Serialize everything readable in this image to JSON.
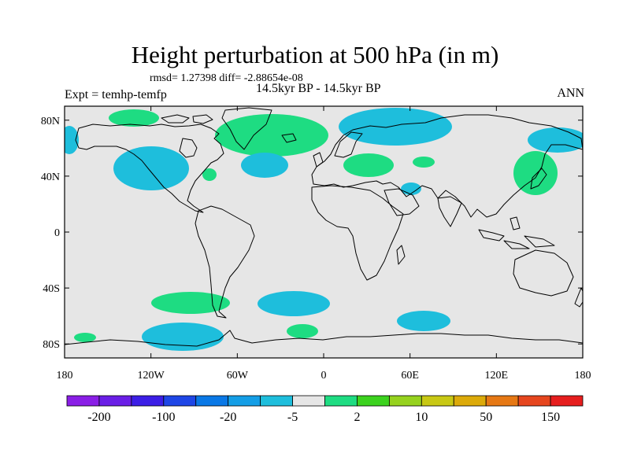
{
  "header": {
    "title": "Height perturbation at 500 hPa (in m)",
    "stats": "rmsd= 1.27398 diff= -2.88654e-08",
    "experiment": "Expt = temhp-temfp",
    "period": "14.5kyr BP - 14.5kyr BP",
    "season": "ANN"
  },
  "axes": {
    "x_ticks": [
      "180",
      "120W",
      "60W",
      "0",
      "60E",
      "120E",
      "180"
    ],
    "y_ticks": [
      "80N",
      "40N",
      "0",
      "40S",
      "80S"
    ]
  },
  "colorbar": {
    "colors": [
      "#8a1ee6",
      "#6a1ee6",
      "#3c1ee6",
      "#1e46e6",
      "#0a78e6",
      "#149ee6",
      "#1ebedc",
      "#e6e6e6",
      "#1edc82",
      "#3cd21e",
      "#96d21e",
      "#c8c814",
      "#dcaa0a",
      "#e67814",
      "#e6461e",
      "#e61e1e"
    ],
    "labels": [
      {
        "text": "-200",
        "index": 1
      },
      {
        "text": "-100",
        "index": 3
      },
      {
        "text": "-20",
        "index": 5
      },
      {
        "text": "-5",
        "index": 7
      },
      {
        "text": "2",
        "index": 9
      },
      {
        "text": "10",
        "index": 11
      },
      {
        "text": "50",
        "index": 13
      },
      {
        "text": "150",
        "index": 15
      }
    ]
  },
  "field": {
    "background": "#e6e6e6",
    "positive_color": "#1edc82",
    "negative_color": "#1ebedc"
  }
}
